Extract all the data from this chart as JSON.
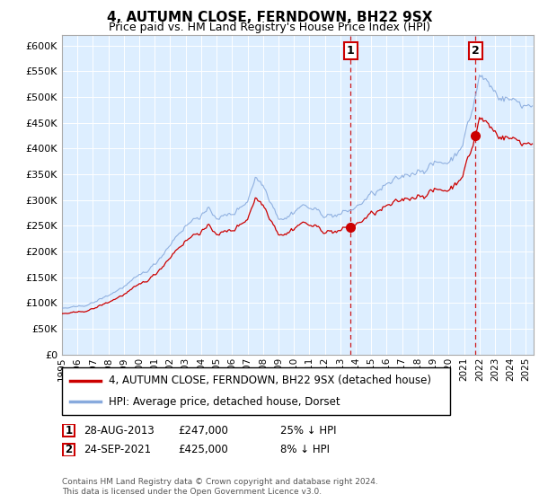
{
  "title": "4, AUTUMN CLOSE, FERNDOWN, BH22 9SX",
  "subtitle": "Price paid vs. HM Land Registry's House Price Index (HPI)",
  "ylabel_ticks": [
    0,
    50000,
    100000,
    150000,
    200000,
    250000,
    300000,
    350000,
    400000,
    450000,
    500000,
    550000,
    600000
  ],
  "ylabel_labels": [
    "£0",
    "£50K",
    "£100K",
    "£150K",
    "£200K",
    "£250K",
    "£300K",
    "£350K",
    "£400K",
    "£450K",
    "£500K",
    "£550K",
    "£600K"
  ],
  "xmin": 1995.0,
  "xmax": 2025.5,
  "ymin": 0,
  "ymax": 620000,
  "sale1_date": "28-AUG-2013",
  "sale1_year": 2013.66,
  "sale1_price": 247000,
  "sale1_label": "25% ↓ HPI",
  "sale2_date": "24-SEP-2021",
  "sale2_year": 2021.73,
  "sale2_price": 425000,
  "sale2_label": "8% ↓ HPI",
  "legend_line1": "4, AUTUMN CLOSE, FERNDOWN, BH22 9SX (detached house)",
  "legend_line2": "HPI: Average price, detached house, Dorset",
  "footer1": "Contains HM Land Registry data © Crown copyright and database right 2024.",
  "footer2": "This data is licensed under the Open Government Licence v3.0.",
  "property_color": "#cc0000",
  "hpi_color": "#88aadd",
  "hpi_color_light": "#aaccee",
  "background_color": "#ddeeff",
  "grid_color": "#cccccc"
}
